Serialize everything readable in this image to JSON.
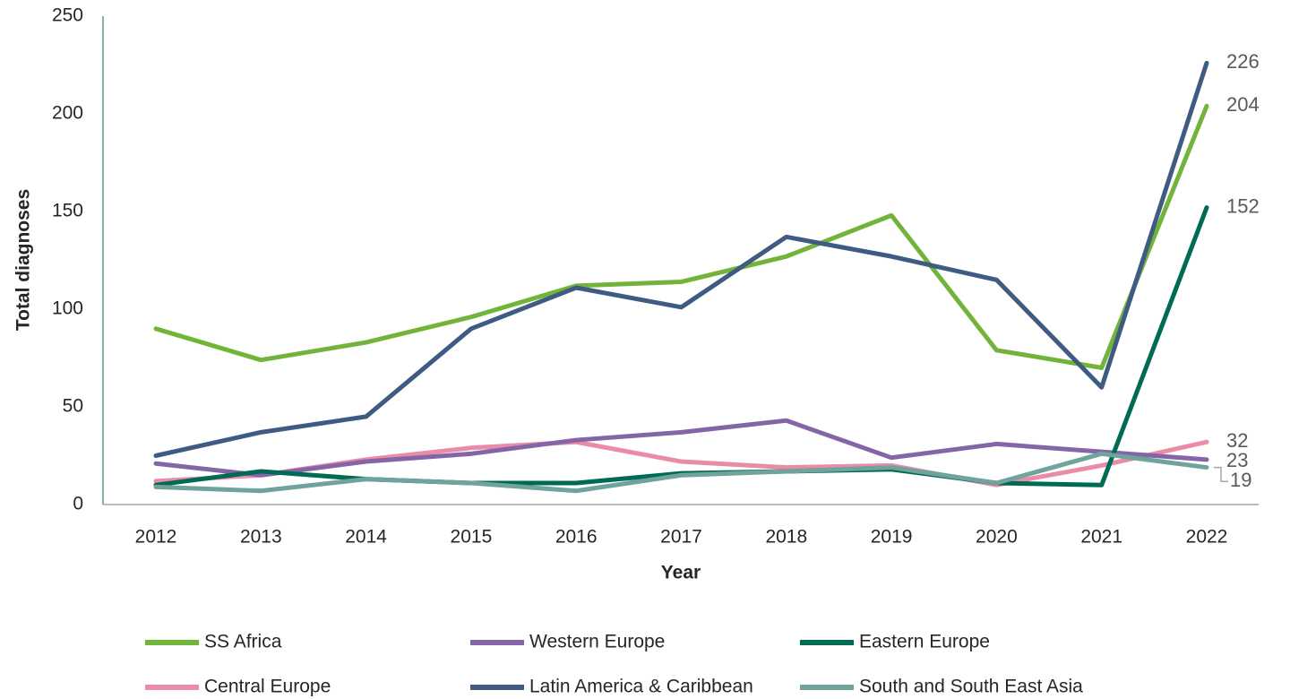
{
  "chart_data": {
    "type": "line",
    "xlabel": "Year",
    "ylabel": "Total diagnoses",
    "categories": [
      "2012",
      "2013",
      "2014",
      "2015",
      "2016",
      "2017",
      "2018",
      "2019",
      "2020",
      "2021",
      "2022"
    ],
    "series": [
      {
        "name": "SS Africa",
        "color": "#72b43a",
        "values": [
          90,
          74,
          83,
          96,
          112,
          114,
          127,
          148,
          79,
          70,
          204
        ]
      },
      {
        "name": "Western Europe",
        "color": "#8466a8",
        "values": [
          21,
          15,
          22,
          26,
          33,
          37,
          43,
          24,
          31,
          27,
          23
        ]
      },
      {
        "name": "Eastern Europe",
        "color": "#006b55",
        "values": [
          10,
          17,
          13,
          11,
          11,
          16,
          17,
          18,
          11,
          10,
          152
        ]
      },
      {
        "name": "Central Europe",
        "color": "#ea8ca6",
        "values": [
          12,
          15,
          23,
          29,
          32,
          22,
          19,
          20,
          10,
          20,
          32
        ]
      },
      {
        "name": "Latin America & Caribbean",
        "color": "#3f5b82",
        "values": [
          25,
          37,
          45,
          90,
          111,
          101,
          137,
          127,
          115,
          60,
          226
        ]
      },
      {
        "name": "South and South East Asia",
        "color": "#70a39b",
        "values": [
          9,
          7,
          13,
          11,
          7,
          15,
          17,
          19,
          11,
          26,
          19
        ]
      }
    ],
    "ylim": [
      0,
      250
    ],
    "yticks": [
      0,
      50,
      100,
      150,
      200,
      250
    ],
    "grid": false,
    "legend": "bottom"
  }
}
